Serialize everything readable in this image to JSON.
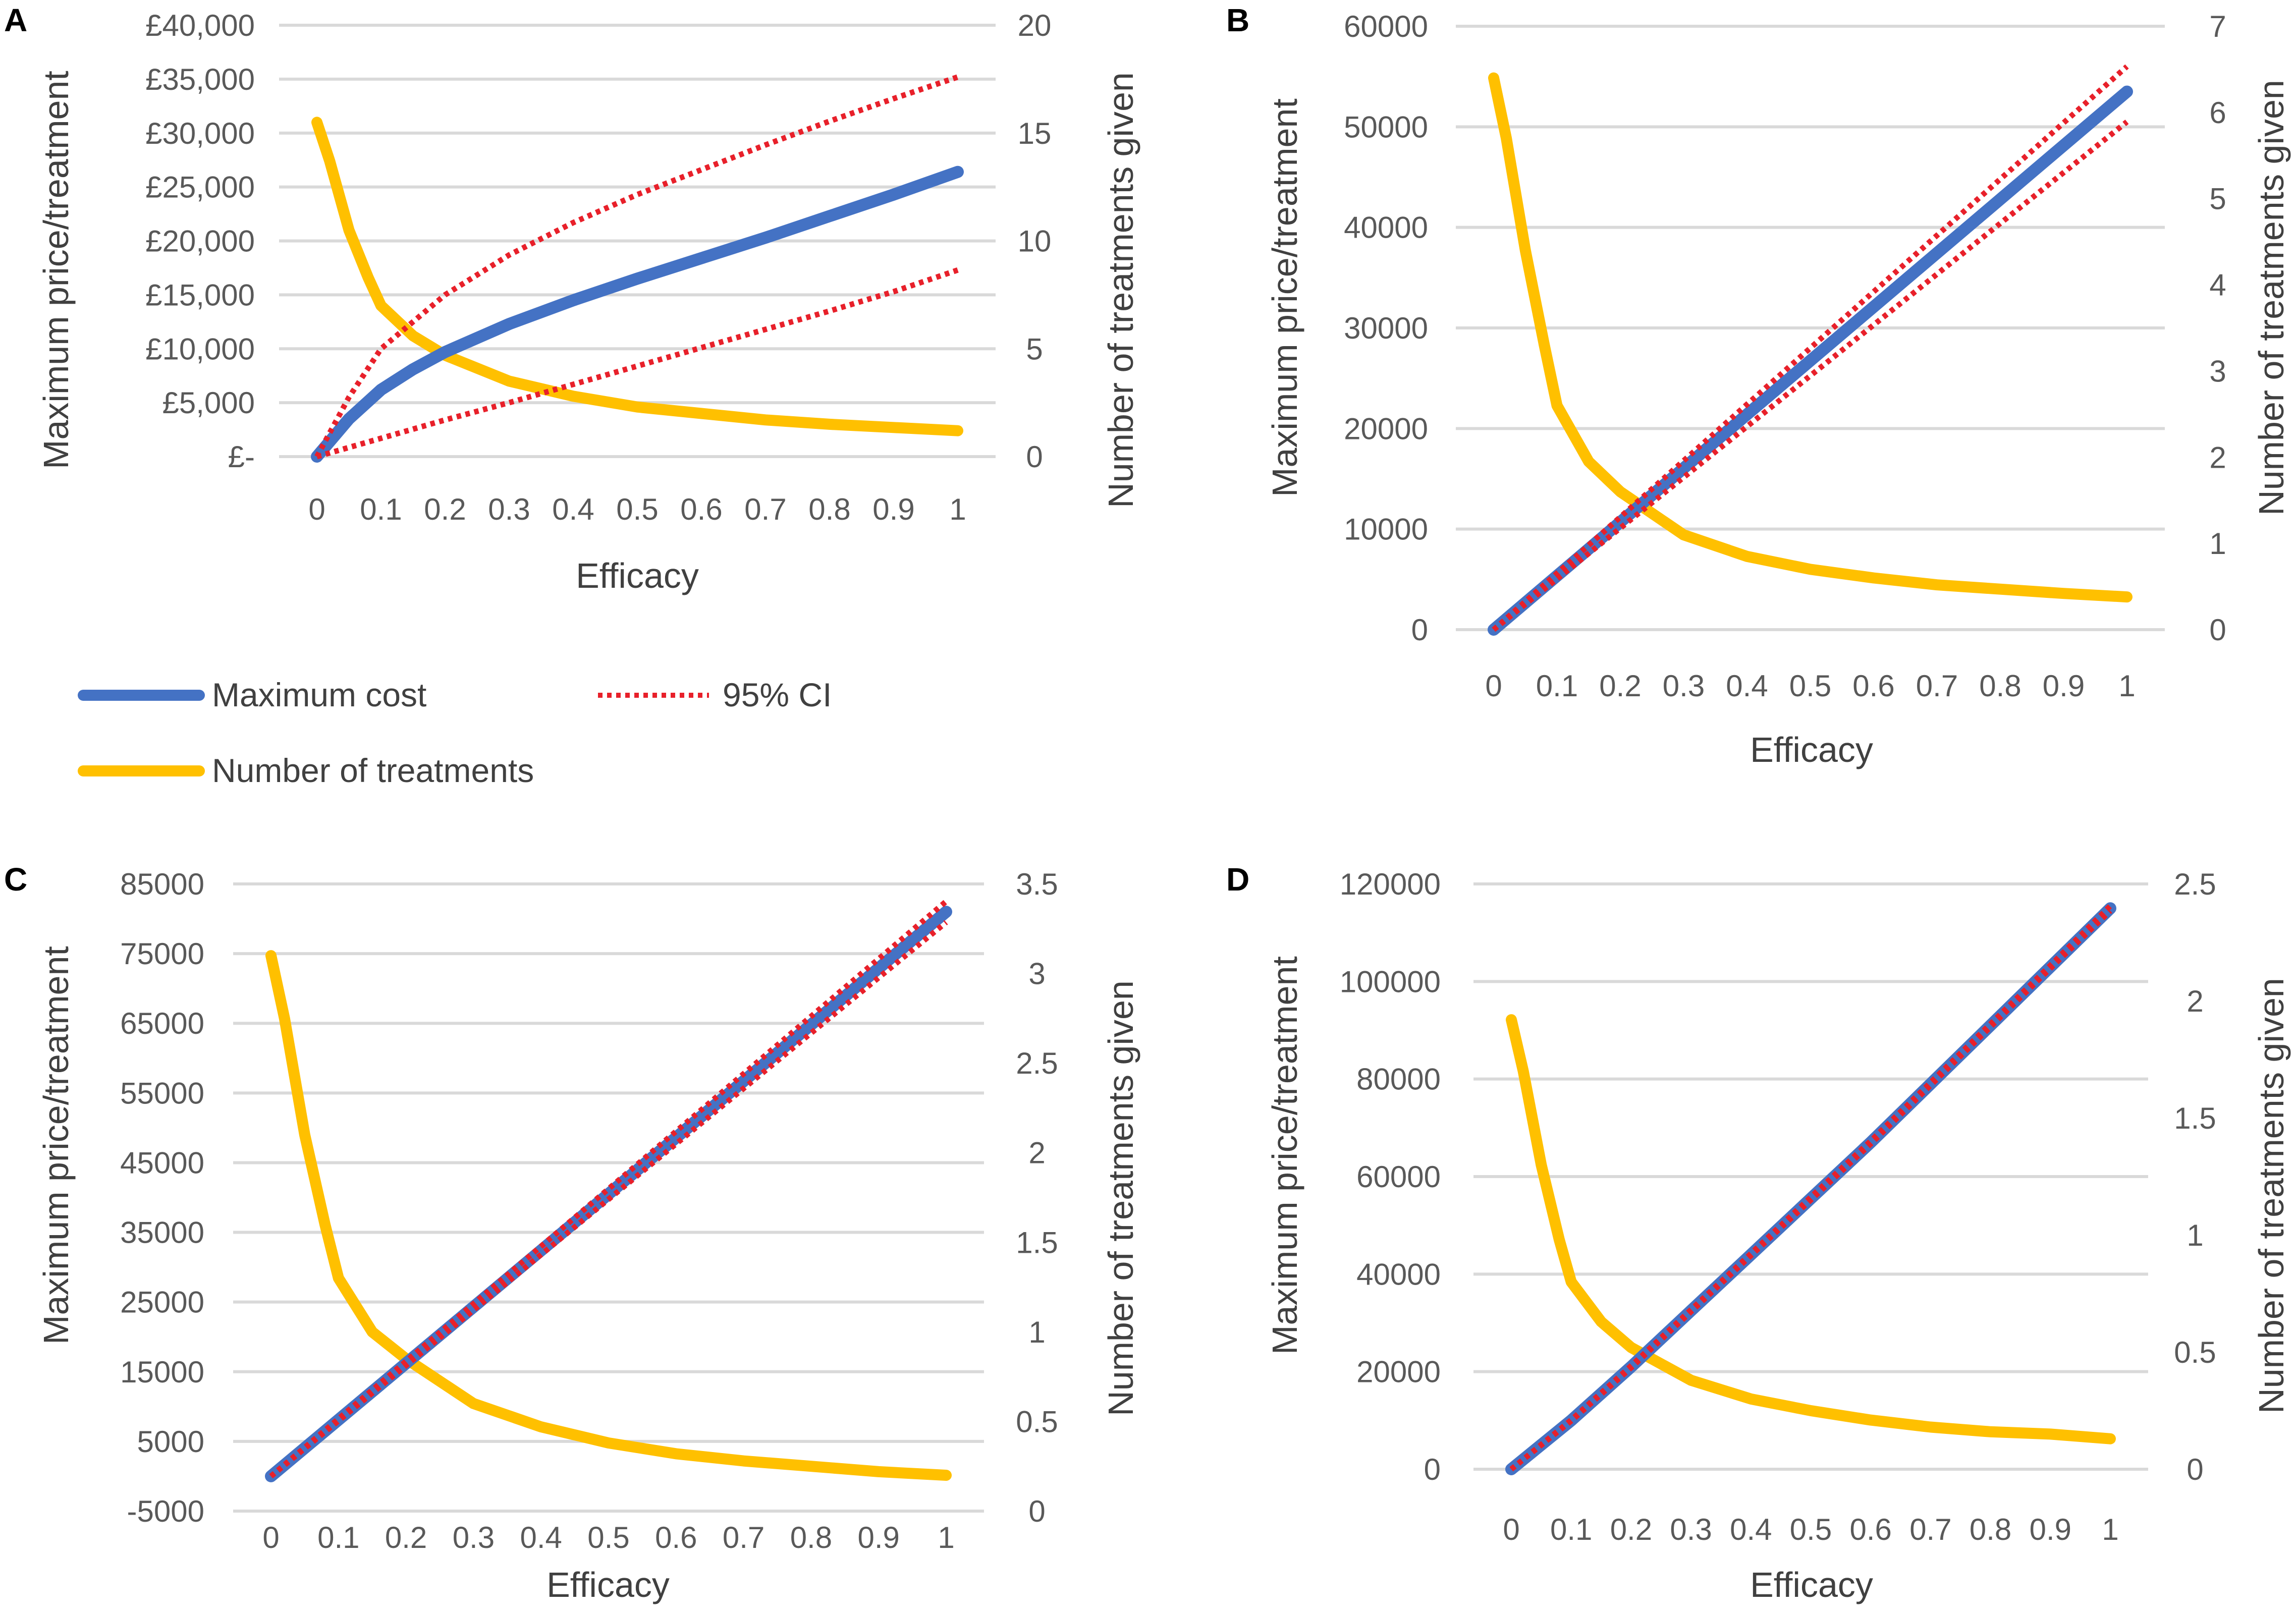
{
  "colors": {
    "max_cost": "#4472c4",
    "ci": "#e8202a",
    "treatments": "#ffc000",
    "grid": "#d9d9d9"
  },
  "legend": {
    "max_cost": "Maximum cost",
    "ci": "95% CI",
    "treatments": "Number of treatments"
  },
  "chart_data": [
    {
      "panel": "A",
      "type": "line",
      "xlabel": "Efficacy",
      "ylabel": "Maximum price/treatment",
      "y2label": "Number of treatments given",
      "x_ticks": [
        "0",
        "0.1",
        "0.2",
        "0.3",
        "0.4",
        "0.5",
        "0.6",
        "0.7",
        "0.8",
        "0.9",
        "1"
      ],
      "y_ticks": [
        "£-",
        "£5,000",
        "£10,000",
        "£15,000",
        "£20,000",
        "£25,000",
        "£30,000",
        "£35,000",
        "£40,000"
      ],
      "y2_ticks": [
        "0",
        "5",
        "10",
        "15",
        "20"
      ],
      "ylim": [
        0,
        40000
      ],
      "y2lim": [
        0,
        20
      ],
      "series": [
        {
          "key": "max_cost",
          "name": "Maximum cost",
          "axis": "left",
          "x": [
            0,
            0.05,
            0.1,
            0.15,
            0.2,
            0.3,
            0.4,
            0.5,
            0.6,
            0.7,
            0.8,
            0.9,
            1.0
          ],
          "values": [
            0,
            3500,
            6200,
            8100,
            9700,
            12300,
            14500,
            16500,
            18400,
            20300,
            22300,
            24300,
            26400
          ]
        },
        {
          "key": "ci_upper",
          "name": "95% CI",
          "axis": "left",
          "x": [
            0,
            0.05,
            0.1,
            0.15,
            0.2,
            0.3,
            0.4,
            0.5,
            0.6,
            0.7,
            0.8,
            0.9,
            1.0
          ],
          "values": [
            0,
            5500,
            10000,
            12500,
            15000,
            18700,
            21700,
            24300,
            26600,
            28900,
            31100,
            33200,
            35200
          ]
        },
        {
          "key": "ci_lower",
          "name": "95% CI",
          "axis": "left",
          "x": [
            0,
            0.1,
            0.2,
            0.3,
            0.4,
            0.5,
            0.6,
            0.7,
            0.8,
            0.9,
            1.0
          ],
          "values": [
            0,
            1700,
            3400,
            5000,
            6700,
            8400,
            10100,
            11800,
            13500,
            15300,
            17300
          ]
        },
        {
          "key": "treatments",
          "name": "Number of treatments",
          "axis": "right",
          "x": [
            0,
            0.02,
            0.05,
            0.08,
            0.1,
            0.15,
            0.2,
            0.3,
            0.4,
            0.5,
            0.6,
            0.7,
            0.8,
            0.9,
            1.0
          ],
          "values": [
            15.5,
            13.7,
            10.5,
            8.3,
            7.0,
            5.6,
            4.7,
            3.5,
            2.8,
            2.3,
            2.0,
            1.7,
            1.5,
            1.35,
            1.2
          ]
        }
      ]
    },
    {
      "panel": "B",
      "type": "line",
      "xlabel": "Efficacy",
      "ylabel": "Maximum price/treatment",
      "y2label": "Number of treatments given",
      "x_ticks": [
        "0",
        "0.1",
        "0.2",
        "0.3",
        "0.4",
        "0.5",
        "0.6",
        "0.7",
        "0.8",
        "0.9",
        "1"
      ],
      "y_ticks": [
        "0",
        "10000",
        "20000",
        "30000",
        "40000",
        "50000",
        "60000"
      ],
      "y2_ticks": [
        "0",
        "1",
        "2",
        "3",
        "4",
        "5",
        "6",
        "7"
      ],
      "ylim": [
        0,
        60000
      ],
      "y2lim": [
        0,
        7
      ],
      "series": [
        {
          "key": "max_cost",
          "name": "Maximum cost",
          "axis": "left",
          "x": [
            0,
            1.0
          ],
          "values": [
            0,
            53500
          ]
        },
        {
          "key": "ci_upper",
          "name": "95% CI",
          "axis": "left",
          "x": [
            0,
            1.0
          ],
          "values": [
            0,
            56000
          ]
        },
        {
          "key": "ci_lower",
          "name": "95% CI",
          "axis": "left",
          "x": [
            0,
            1.0
          ],
          "values": [
            0,
            50500
          ]
        },
        {
          "key": "treatments",
          "name": "Number of treatments",
          "axis": "right",
          "x": [
            0,
            0.02,
            0.05,
            0.08,
            0.1,
            0.15,
            0.2,
            0.3,
            0.4,
            0.5,
            0.6,
            0.7,
            0.8,
            0.9,
            1.0
          ],
          "values": [
            6.4,
            5.7,
            4.4,
            3.3,
            2.6,
            1.95,
            1.6,
            1.1,
            0.85,
            0.7,
            0.6,
            0.52,
            0.47,
            0.42,
            0.38
          ]
        }
      ]
    },
    {
      "panel": "C",
      "type": "line",
      "xlabel": "Efficacy",
      "ylabel": "Maximum price/treatment",
      "y2label": "Number of treatments given",
      "x_ticks": [
        "0",
        "0.1",
        "0.2",
        "0.3",
        "0.4",
        "0.5",
        "0.6",
        "0.7",
        "0.8",
        "0.9",
        "1"
      ],
      "y_ticks": [
        "-5000",
        "5000",
        "15000",
        "25000",
        "35000",
        "45000",
        "55000",
        "65000",
        "75000",
        "85000"
      ],
      "y2_ticks": [
        "0",
        "0.5",
        "1",
        "1.5",
        "2",
        "2.5",
        "3",
        "3.5"
      ],
      "ylim": [
        -5000,
        85000
      ],
      "y2lim": [
        0,
        3.5
      ],
      "series": [
        {
          "key": "max_cost",
          "name": "Maximum cost",
          "axis": "left",
          "x": [
            0,
            1.0
          ],
          "values": [
            0,
            81000
          ]
        },
        {
          "key": "ci_upper",
          "name": "95% CI",
          "axis": "left",
          "x": [
            0,
            1.0
          ],
          "values": [
            0,
            82500
          ]
        },
        {
          "key": "ci_lower",
          "name": "95% CI",
          "axis": "left",
          "x": [
            0,
            1.0
          ],
          "values": [
            0,
            79500
          ]
        },
        {
          "key": "treatments",
          "name": "Number of treatments",
          "axis": "right",
          "x": [
            0,
            0.02,
            0.05,
            0.08,
            0.1,
            0.15,
            0.2,
            0.3,
            0.4,
            0.5,
            0.6,
            0.7,
            0.8,
            0.9,
            1.0
          ],
          "values": [
            3.1,
            2.75,
            2.1,
            1.6,
            1.3,
            1.0,
            0.85,
            0.6,
            0.47,
            0.38,
            0.32,
            0.28,
            0.25,
            0.22,
            0.2
          ]
        }
      ]
    },
    {
      "panel": "D",
      "type": "line",
      "xlabel": "Efficacy",
      "ylabel": "Maximum price/treatment",
      "y2label": "Number of treatments given",
      "x_ticks": [
        "0",
        "0.1",
        "0.2",
        "0.3",
        "0.4",
        "0.5",
        "0.6",
        "0.7",
        "0.8",
        "0.9",
        "1"
      ],
      "y_ticks": [
        "0",
        "20000",
        "40000",
        "60000",
        "80000",
        "100000",
        "120000"
      ],
      "y2_ticks": [
        "0",
        "0.5",
        "1",
        "1.5",
        "2",
        "2.5"
      ],
      "ylim": [
        0,
        120000
      ],
      "y2lim": [
        0,
        2.5
      ],
      "series": [
        {
          "key": "max_cost",
          "name": "Maximum cost",
          "axis": "left",
          "x": [
            0,
            0.1,
            0.2,
            0.3,
            0.4,
            0.5,
            0.6,
            0.7,
            0.8,
            0.9,
            1.0
          ],
          "values": [
            0,
            10000,
            21000,
            32500,
            44000,
            55500,
            67000,
            79000,
            91000,
            103000,
            115000
          ]
        },
        {
          "key": "ci_upper",
          "name": "95% CI",
          "axis": "left",
          "x": [
            0,
            0.1,
            0.2,
            0.3,
            0.4,
            0.5,
            0.6,
            0.7,
            0.8,
            0.9,
            1.0
          ],
          "values": [
            0,
            10100,
            21200,
            32700,
            44200,
            55800,
            67300,
            79300,
            91300,
            103300,
            115500
          ]
        },
        {
          "key": "ci_lower",
          "name": "95% CI",
          "axis": "left",
          "x": [
            0,
            0.1,
            0.2,
            0.3,
            0.4,
            0.5,
            0.6,
            0.7,
            0.8,
            0.9,
            1.0
          ],
          "values": [
            0,
            9900,
            20800,
            32300,
            43800,
            55200,
            66700,
            78700,
            90700,
            102700,
            114500
          ]
        },
        {
          "key": "treatments",
          "name": "Number of treatments",
          "axis": "right",
          "x": [
            0,
            0.02,
            0.05,
            0.08,
            0.1,
            0.15,
            0.2,
            0.3,
            0.4,
            0.5,
            0.6,
            0.7,
            0.8,
            0.9,
            1.0
          ],
          "values": [
            1.92,
            1.7,
            1.3,
            0.98,
            0.8,
            0.63,
            0.52,
            0.38,
            0.3,
            0.25,
            0.21,
            0.18,
            0.16,
            0.15,
            0.13
          ]
        }
      ]
    }
  ]
}
